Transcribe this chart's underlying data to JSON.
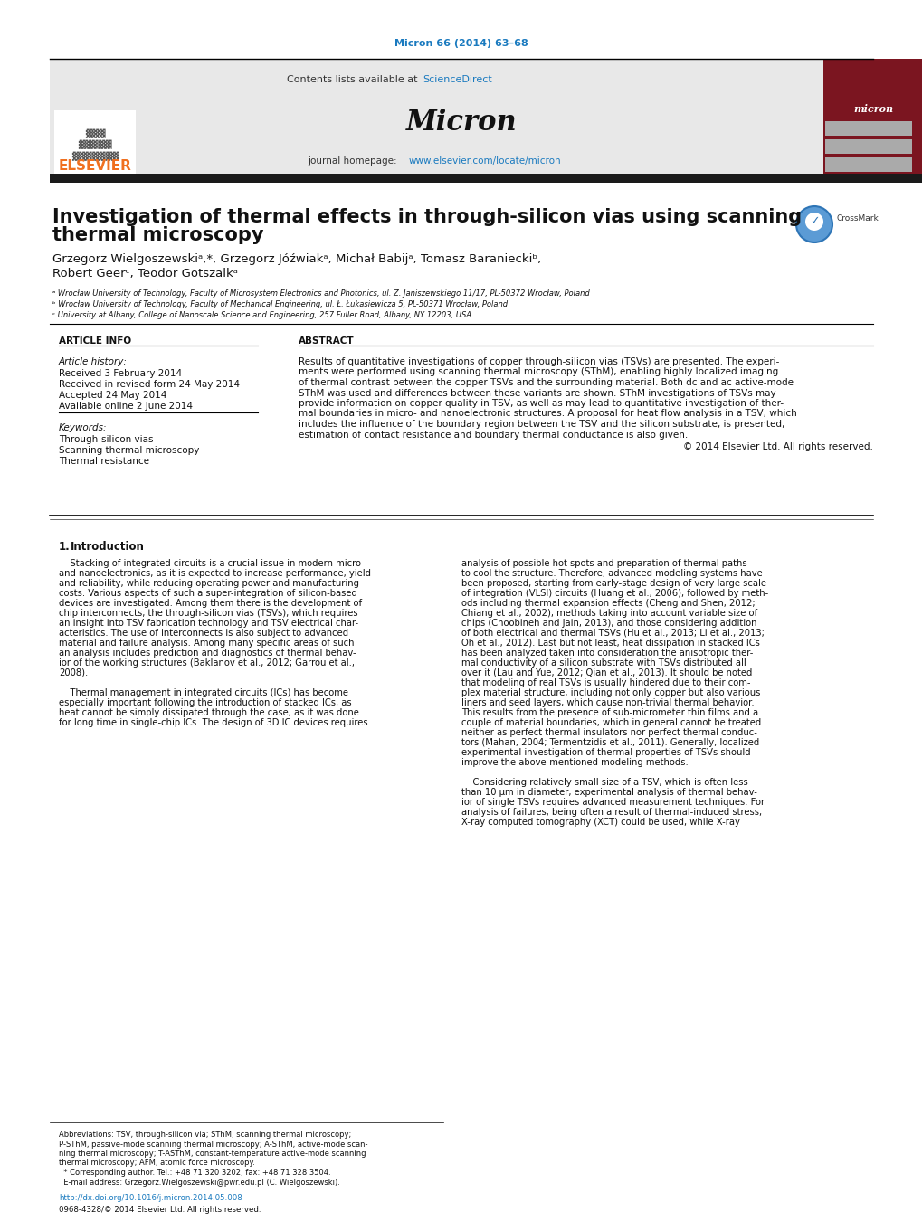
{
  "journal_ref": "Micron 66 (2014) 63–68",
  "journal_ref_color": "#1a7abf",
  "contents_text": "Contents lists available at ",
  "sciencedirect_text": "ScienceDirect",
  "sciencedirect_color": "#1a7abf",
  "journal_name": "Micron",
  "journal_homepage_prefix": "journal homepage: ",
  "journal_url": "www.elsevier.com/locate/micron",
  "journal_url_color": "#1a7abf",
  "elsevier_color": "#f07020",
  "title_line1": "Investigation of thermal effects in through-silicon vias using scanning",
  "title_line2": "thermal microscopy",
  "author_line1": "Grzegorz Wielgoszewskiᵃ,*, Grzegorz Jóźwiakᵃ, Michał Babijᵃ, Tomasz Baranieckiᵇ,",
  "author_line2": "Robert Geerᶜ, Teodor Gotszalkᵃ",
  "affil_a": "ᵃ Wrocław University of Technology, Faculty of Microsystem Electronics and Photonics, ul. Z. Janiszewskiego 11/17, PL-50372 Wrocław, Poland",
  "affil_b": "ᵇ Wrocław University of Technology, Faculty of Mechanical Engineering, ul. Ł. Łukasiewicza 5, PL-50371 Wrocław, Poland",
  "affil_c": "ᶜ University at Albany, College of Nanoscale Science and Engineering, 257 Fuller Road, Albany, NY 12203, USA",
  "article_info_title": "ARTICLE INFO",
  "abstract_title": "ABSTRACT",
  "article_history_label": "Article history:",
  "received": "Received 3 February 2014",
  "revised": "Received in revised form 24 May 2014",
  "accepted": "Accepted 24 May 2014",
  "available": "Available online 2 June 2014",
  "keywords_label": "Keywords:",
  "keyword1": "Through-silicon vias",
  "keyword2": "Scanning thermal microscopy",
  "keyword3": "Thermal resistance",
  "abstract_lines": [
    "Results of quantitative investigations of copper through-silicon vias (TSVs) are presented. The experi-",
    "ments were performed using scanning thermal microscopy (SThM), enabling highly localized imaging",
    "of thermal contrast between the copper TSVs and the surrounding material. Both dc and ac active-mode",
    "SThM was used and differences between these variants are shown. SThM investigations of TSVs may",
    "provide information on copper quality in TSV, as well as may lead to quantitative investigation of ther-",
    "mal boundaries in micro- and nanoelectronic structures. A proposal for heat flow analysis in a TSV, which",
    "includes the influence of the boundary region between the TSV and the silicon substrate, is presented;",
    "estimation of contact resistance and boundary thermal conductance is also given."
  ],
  "copyright": "© 2014 Elsevier Ltd. All rights reserved.",
  "intro_left_lines": [
    "    Stacking of integrated circuits is a crucial issue in modern micro-",
    "and nanoelectronics, as it is expected to increase performance, yield",
    "and reliability, while reducing operating power and manufacturing",
    "costs. Various aspects of such a super-integration of silicon-based",
    "devices are investigated. Among them there is the development of",
    "chip interconnects, the through-silicon vias (TSVs), which requires",
    "an insight into TSV fabrication technology and TSV electrical char-",
    "acteristics. The use of interconnects is also subject to advanced",
    "material and failure analysis. Among many specific areas of such",
    "an analysis includes prediction and diagnostics of thermal behav-",
    "ior of the working structures (Baklanov et al., 2012; Garrou et al.,",
    "2008).",
    "",
    "    Thermal management in integrated circuits (ICs) has become",
    "especially important following the introduction of stacked ICs, as",
    "heat cannot be simply dissipated through the case, as it was done",
    "for long time in single-chip ICs. The design of 3D IC devices requires"
  ],
  "intro_right_lines": [
    "analysis of possible hot spots and preparation of thermal paths",
    "to cool the structure. Therefore, advanced modeling systems have",
    "been proposed, starting from early-stage design of very large scale",
    "of integration (VLSI) circuits (Huang et al., 2006), followed by meth-",
    "ods including thermal expansion effects (Cheng and Shen, 2012;",
    "Chiang et al., 2002), methods taking into account variable size of",
    "chips (Choobineh and Jain, 2013), and those considering addition",
    "of both electrical and thermal TSVs (Hu et al., 2013; Li et al., 2013;",
    "Oh et al., 2012). Last but not least, heat dissipation in stacked ICs",
    "has been analyzed taken into consideration the anisotropic ther-",
    "mal conductivity of a silicon substrate with TSVs distributed all",
    "over it (Lau and Yue, 2012; Qian et al., 2013). It should be noted",
    "that modeling of real TSVs is usually hindered due to their com-",
    "plex material structure, including not only copper but also various",
    "liners and seed layers, which cause non-trivial thermal behavior.",
    "This results from the presence of sub-micrometer thin films and a",
    "couple of material boundaries, which in general cannot be treated",
    "neither as perfect thermal insulators nor perfect thermal conduc-",
    "tors (Mahan, 2004; Termentzidis et al., 2011). Generally, localized",
    "experimental investigation of thermal properties of TSVs should",
    "improve the above-mentioned modeling methods.",
    "",
    "    Considering relatively small size of a TSV, which is often less",
    "than 10 μm in diameter, experimental analysis of thermal behav-",
    "ior of single TSVs requires advanced measurement techniques. For",
    "analysis of failures, being often a result of thermal-induced stress,",
    "X-ray computed tomography (XCT) could be used, while X-ray"
  ],
  "footnote_lines": [
    "Abbreviations: TSV, through-silicon via; SThM, scanning thermal microscopy;",
    "P-SThM, passive-mode scanning thermal microscopy; A-SThM, active-mode scan-",
    "ning thermal microscopy; T-ASThM, constant-temperature active-mode scanning",
    "thermal microscopy; AFM, atomic force microscopy.",
    "  * Corresponding author. Tel.: +48 71 320 3202; fax: +48 71 328 3504.",
    "  E-mail address: Grzegorz.Wielgoszewski@pwr.edu.pl (C. Wielgoszewski)."
  ],
  "doi_text": "http://dx.doi.org/10.1016/j.micron.2014.05.008",
  "issn_text": "0968-4328/© 2014 Elsevier Ltd. All rights reserved.",
  "header_bg": "#e8e8e8",
  "dark_bar_color": "#1a1a1a",
  "ref_color": "#1a7abf",
  "bg_color": "#ffffff",
  "text_color": "#000000"
}
